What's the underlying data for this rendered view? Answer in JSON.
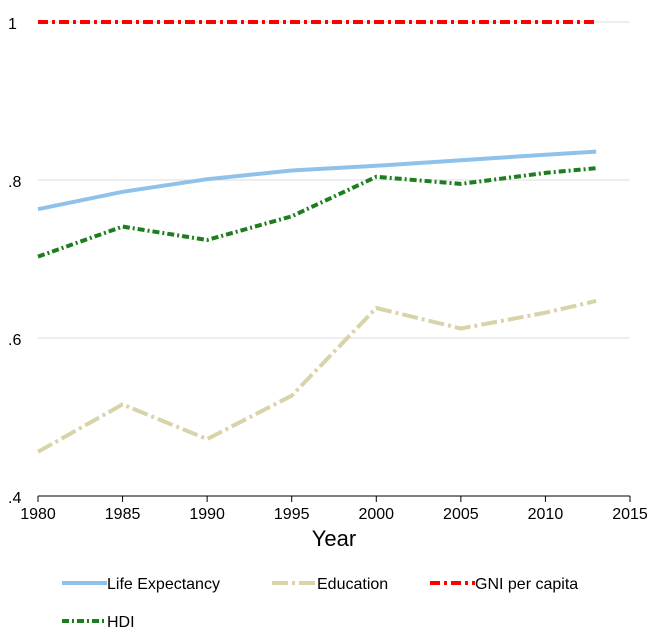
{
  "chart_data": {
    "type": "line",
    "xlabel": "Year",
    "ylabel": "",
    "xlim": [
      1980,
      2015
    ],
    "ylim": [
      0.4,
      1.0
    ],
    "x_ticks": [
      1980,
      1985,
      1990,
      1995,
      2000,
      2005,
      2010,
      2015
    ],
    "x_tick_labels": [
      "1980",
      "1985",
      "1990",
      "1995",
      "2000",
      "2005",
      "2010",
      "2015"
    ],
    "y_ticks": [
      0.4,
      0.6,
      0.8,
      1.0
    ],
    "y_tick_labels": [
      ".4",
      ".6",
      ".8",
      "1"
    ],
    "grid": true,
    "legend_position": "bottom",
    "x": [
      1980,
      1985,
      1990,
      1995,
      2000,
      2005,
      2010,
      2013
    ],
    "series": [
      {
        "name": "Life Expectancy",
        "color": "#8fc2ea",
        "style": "solid",
        "values": [
          0.763,
          0.785,
          0.801,
          0.812,
          0.818,
          0.825,
          0.832,
          0.836
        ]
      },
      {
        "name": "Education",
        "color": "#d8d3a8",
        "style": "longdash-dot",
        "values": [
          0.456,
          0.516,
          0.472,
          0.527,
          0.638,
          0.612,
          0.632,
          0.647
        ]
      },
      {
        "name": "GNI per capita",
        "color": "#ff0000",
        "style": "dash-dot",
        "values": [
          1.0,
          1.0,
          1.0,
          1.0,
          1.0,
          1.0,
          1.0,
          1.0
        ]
      },
      {
        "name": "HDI",
        "color": "#1e7d1e",
        "style": "short-dash-dot",
        "values": [
          0.703,
          0.741,
          0.724,
          0.754,
          0.804,
          0.795,
          0.809,
          0.815
        ]
      }
    ]
  }
}
